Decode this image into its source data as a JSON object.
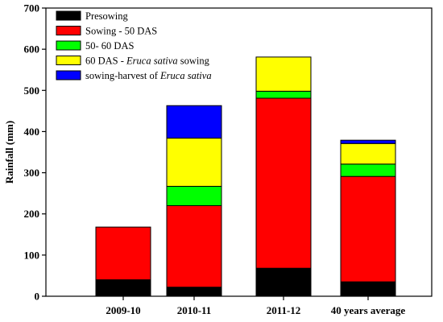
{
  "chart_data": {
    "type": "bar",
    "stacked": true,
    "ylabel": "Rainfall (mm)",
    "xlabel": "",
    "ylim": [
      0,
      700
    ],
    "yticks": [
      0,
      100,
      200,
      300,
      400,
      500,
      600,
      700
    ],
    "categories": [
      "2009-10",
      "2010-11",
      "2011-12",
      "40 years average"
    ],
    "grid": false,
    "legend_position": "top-left",
    "series": [
      {
        "name": "Presowing",
        "color": "#000000",
        "values": [
          40,
          22,
          68,
          35
        ]
      },
      {
        "name": "Sowing - 50 DAS",
        "color": "#ff0000",
        "values": [
          128,
          198,
          413,
          256
        ]
      },
      {
        "name": "50- 60 DAS",
        "color": "#00ff00",
        "values": [
          0,
          47,
          17,
          30
        ]
      },
      {
        "name": "60 DAS - Eruca sativa sowing",
        "name_prefix": "60 DAS - ",
        "name_italic": "Eruca sativa",
        "name_suffix": " sowing",
        "color": "#ffff00",
        "values": [
          0,
          117,
          83,
          50
        ]
      },
      {
        "name": "sowing-harvest of Eruca sativa",
        "name_prefix": "sowing-harvest of ",
        "name_italic": "Eruca sativa",
        "name_suffix": "",
        "color": "#0000ff",
        "values": [
          0,
          79,
          0,
          8
        ]
      }
    ]
  }
}
